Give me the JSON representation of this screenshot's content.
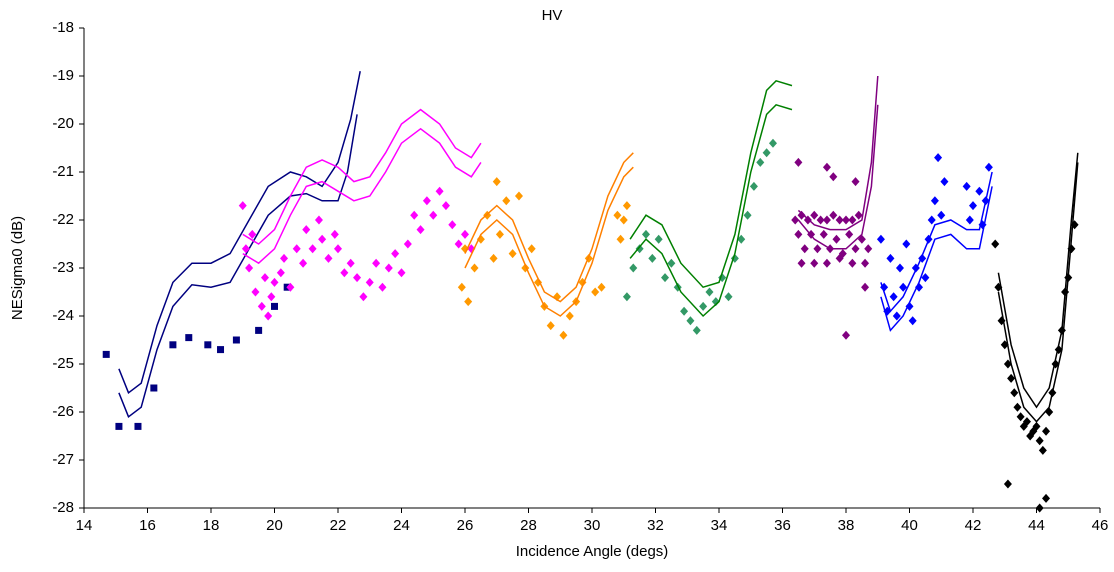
{
  "chart_data": {
    "type": "scatter",
    "title": "HV",
    "x_label": "Incidence Angle (degs)",
    "y_label": "NESigma0 (dB)",
    "xlim": [
      14,
      46
    ],
    "xticks": [
      14,
      16,
      18,
      20,
      22,
      24,
      26,
      28,
      30,
      32,
      34,
      36,
      38,
      40,
      42,
      44,
      46
    ],
    "ylim": [
      -28,
      -18
    ],
    "yticks": [
      -18,
      -19,
      -20,
      -21,
      -22,
      -23,
      -24,
      -25,
      -26,
      -27,
      -28
    ],
    "grid": false,
    "series": [
      {
        "style": "square",
        "color": "#000080",
        "x": [
          14.7,
          15.1,
          15.7,
          16.2,
          16.8,
          17.3,
          17.9,
          18.3,
          18.8,
          19.5,
          20.0,
          20.4
        ],
        "values": [
          -24.8,
          -26.3,
          -26.3,
          -25.5,
          -24.6,
          -24.45,
          -24.6,
          -24.7,
          -24.5,
          -24.3,
          -23.8,
          -23.4
        ]
      },
      {
        "style": "line",
        "color": "#000080",
        "x": [
          15.1,
          15.4,
          15.8,
          16.3,
          16.8,
          17.4,
          18.0,
          18.6,
          19.2,
          19.8,
          20.5,
          21.0,
          21.5,
          22.0,
          22.4,
          22.7
        ],
        "values": [
          -25.1,
          -25.6,
          -25.4,
          -24.2,
          -23.3,
          -22.9,
          -22.9,
          -22.7,
          -22.0,
          -21.3,
          -21.0,
          -21.1,
          -21.3,
          -20.8,
          -19.9,
          -18.9
        ]
      },
      {
        "style": "line",
        "color": "#000080",
        "x": [
          15.1,
          15.4,
          15.8,
          16.3,
          16.8,
          17.4,
          18.0,
          18.6,
          19.2,
          19.8,
          20.5,
          21.0,
          21.5,
          22.0,
          22.3,
          22.6
        ],
        "values": [
          -25.6,
          -26.1,
          -25.9,
          -24.7,
          -23.8,
          -23.35,
          -23.4,
          -23.3,
          -22.6,
          -21.9,
          -21.5,
          -21.45,
          -21.6,
          -21.6,
          -21.0,
          -19.8
        ]
      },
      {
        "style": "diamond",
        "color": "#ff00ff",
        "x": [
          19.0,
          19.1,
          19.2,
          19.3,
          19.4,
          19.6,
          19.7,
          19.8,
          19.9,
          20.0,
          20.2,
          20.3,
          20.5,
          20.7,
          20.9,
          21.0,
          21.2,
          21.4,
          21.5,
          21.7,
          21.9,
          22.0,
          22.2,
          22.4,
          22.6,
          22.8,
          23.0,
          23.2,
          23.4,
          23.6,
          23.8,
          24.0,
          24.2,
          24.4,
          24.6,
          24.8,
          25.0,
          25.2,
          25.4,
          25.6,
          25.8,
          26.0,
          26.2
        ],
        "values": [
          -21.7,
          -22.6,
          -23.0,
          -22.3,
          -23.5,
          -23.8,
          -23.2,
          -24.0,
          -23.6,
          -23.3,
          -23.1,
          -22.8,
          -23.4,
          -22.6,
          -22.9,
          -22.2,
          -22.6,
          -22.0,
          -22.4,
          -22.8,
          -22.3,
          -22.6,
          -23.1,
          -22.9,
          -23.2,
          -23.6,
          -23.3,
          -22.9,
          -23.4,
          -23.0,
          -22.7,
          -23.1,
          -22.5,
          -21.9,
          -22.2,
          -21.6,
          -21.9,
          -21.4,
          -21.7,
          -22.1,
          -22.5,
          -22.3,
          -22.6
        ]
      },
      {
        "style": "line",
        "color": "#ff00ff",
        "x": [
          19,
          19.5,
          20,
          20.5,
          21,
          21.5,
          22,
          22.5,
          23,
          23.5,
          24,
          24.6,
          25.2,
          25.7,
          26.2,
          26.5
        ],
        "values": [
          -22.3,
          -22.5,
          -22.2,
          -21.5,
          -20.9,
          -20.75,
          -20.9,
          -21.2,
          -21.1,
          -20.6,
          -20.0,
          -19.7,
          -20.0,
          -20.5,
          -20.7,
          -20.4
        ]
      },
      {
        "style": "line",
        "color": "#ff00ff",
        "x": [
          19,
          19.5,
          20,
          20.5,
          21,
          21.5,
          22,
          22.5,
          23,
          23.5,
          24,
          24.6,
          25.2,
          25.7,
          26.2,
          26.5
        ],
        "values": [
          -22.7,
          -22.9,
          -22.6,
          -21.9,
          -21.3,
          -21.2,
          -21.4,
          -21.6,
          -21.5,
          -21.0,
          -20.4,
          -20.1,
          -20.4,
          -20.9,
          -21.1,
          -20.8
        ]
      },
      {
        "style": "diamond",
        "color": "#ff9900",
        "x": [
          25.9,
          26.0,
          26.1,
          26.3,
          26.5,
          26.7,
          26.9,
          27.0,
          27.1,
          27.3,
          27.5,
          27.7,
          27.9,
          28.1,
          28.3,
          28.5,
          28.7,
          28.9,
          29.1,
          29.3,
          29.5,
          29.7,
          29.9,
          30.1,
          30.3,
          30.8,
          30.9,
          31.0,
          31.1
        ],
        "values": [
          -23.4,
          -22.6,
          -23.7,
          -23.0,
          -22.4,
          -21.9,
          -22.8,
          -21.2,
          -22.3,
          -21.6,
          -22.7,
          -21.5,
          -23.0,
          -22.6,
          -23.3,
          -23.8,
          -24.2,
          -23.6,
          -24.4,
          -24.0,
          -23.7,
          -23.3,
          -22.8,
          -23.5,
          -23.4,
          -21.9,
          -22.4,
          -22.0,
          -21.7
        ]
      },
      {
        "style": "line",
        "color": "#ff8000",
        "x": [
          26,
          26.5,
          27,
          27.5,
          28,
          28.5,
          29,
          29.5,
          30,
          30.5,
          31,
          31.3
        ],
        "values": [
          -22.7,
          -22.0,
          -21.7,
          -22.0,
          -22.8,
          -23.5,
          -23.7,
          -23.4,
          -22.6,
          -21.5,
          -20.8,
          -20.6
        ]
      },
      {
        "style": "line",
        "color": "#ff8000",
        "x": [
          26,
          26.5,
          27,
          27.5,
          28,
          28.5,
          29,
          29.5,
          30,
          30.5,
          31,
          31.3
        ],
        "values": [
          -23.0,
          -22.3,
          -22.0,
          -22.3,
          -23.1,
          -23.8,
          -24.0,
          -23.7,
          -22.9,
          -21.8,
          -21.1,
          -20.9
        ]
      },
      {
        "style": "diamond",
        "color": "#339966",
        "x": [
          31.1,
          31.3,
          31.5,
          31.7,
          31.9,
          32.1,
          32.3,
          32.5,
          32.7,
          32.9,
          33.1,
          33.3,
          33.5,
          33.7,
          33.9,
          34.1,
          34.3,
          34.5,
          34.7,
          34.9,
          35.1,
          35.3,
          35.5,
          35.7
        ],
        "values": [
          -23.6,
          -23.0,
          -22.6,
          -22.3,
          -22.8,
          -22.4,
          -23.2,
          -22.9,
          -23.4,
          -23.9,
          -24.1,
          -24.3,
          -23.8,
          -23.5,
          -23.7,
          -23.2,
          -23.6,
          -22.8,
          -22.4,
          -21.9,
          -21.3,
          -20.8,
          -20.6,
          -20.4
        ]
      },
      {
        "style": "line",
        "color": "#008000",
        "x": [
          31.2,
          31.7,
          32.2,
          32.8,
          33.5,
          34,
          34.5,
          35,
          35.5,
          35.8,
          36.3
        ],
        "values": [
          -22.4,
          -21.9,
          -22.1,
          -22.9,
          -23.4,
          -23.3,
          -22.3,
          -20.6,
          -19.3,
          -19.1,
          -19.2
        ]
      },
      {
        "style": "line",
        "color": "#008000",
        "x": [
          31.2,
          31.7,
          32.2,
          32.8,
          33.5,
          34,
          34.5,
          35,
          35.5,
          35.8,
          36.3
        ],
        "values": [
          -22.8,
          -22.4,
          -22.7,
          -23.5,
          -24.0,
          -23.7,
          -22.7,
          -21.0,
          -19.8,
          -19.6,
          -19.7
        ]
      },
      {
        "style": "diamond",
        "color": "#800080",
        "x": [
          36.4,
          36.6,
          36.8,
          37.0,
          37.2,
          37.4,
          37.6,
          37.8,
          38.0,
          38.2,
          38.4,
          36.5,
          36.9,
          37.3,
          37.7,
          38.1,
          38.5,
          36.7,
          37.1,
          37.5,
          37.9,
          38.3,
          36.6,
          37.0,
          37.4,
          37.8,
          38.2,
          38.6,
          36.5,
          37.6,
          38.3,
          38.0,
          37.4,
          38.6,
          38.7
        ],
        "values": [
          -22.0,
          -21.9,
          -22.0,
          -21.9,
          -22.0,
          -22.0,
          -21.9,
          -22.0,
          -22.0,
          -22.0,
          -21.9,
          -22.3,
          -22.3,
          -22.3,
          -22.4,
          -22.3,
          -22.4,
          -22.6,
          -22.6,
          -22.6,
          -22.7,
          -22.6,
          -22.9,
          -22.9,
          -22.9,
          -22.8,
          -22.9,
          -22.9,
          -20.8,
          -21.1,
          -21.2,
          -24.4,
          -20.9,
          -23.4,
          -22.6
        ]
      },
      {
        "style": "line",
        "color": "#800080",
        "x": [
          36.5,
          37,
          37.5,
          38,
          38.5,
          38.8,
          39
        ],
        "values": [
          -21.8,
          -22.1,
          -22.2,
          -22.2,
          -22.0,
          -20.8,
          -19.0
        ]
      },
      {
        "style": "line",
        "color": "#800080",
        "x": [
          36.5,
          37,
          37.5,
          38,
          38.5,
          38.8,
          39
        ],
        "values": [
          -22.0,
          -22.4,
          -22.6,
          -22.6,
          -22.3,
          -21.3,
          -19.6
        ]
      },
      {
        "style": "diamond",
        "color": "#0000ff",
        "x": [
          39.1,
          39.2,
          39.3,
          39.4,
          39.5,
          39.6,
          39.7,
          39.8,
          39.9,
          40.0,
          40.1,
          40.2,
          40.3,
          40.4,
          40.5,
          40.6,
          40.7,
          40.8,
          40.9,
          41.0,
          41.1,
          41.8,
          41.9,
          42.0,
          42.2,
          42.3,
          42.4,
          42.5
        ],
        "values": [
          -22.4,
          -23.4,
          -23.9,
          -22.8,
          -23.6,
          -24.0,
          -23.0,
          -23.4,
          -22.5,
          -23.8,
          -24.1,
          -23.0,
          -23.4,
          -22.8,
          -23.2,
          -22.4,
          -22.0,
          -21.6,
          -20.7,
          -21.9,
          -21.2,
          -21.3,
          -22.0,
          -21.7,
          -21.4,
          -22.1,
          -21.6,
          -20.9
        ]
      },
      {
        "style": "line",
        "color": "#0000ff",
        "x": [
          39.1,
          39.4,
          39.8,
          40.3,
          40.8,
          41.3,
          41.8,
          42.2,
          42.6
        ],
        "values": [
          -23.3,
          -23.9,
          -23.6,
          -22.9,
          -22.1,
          -22.0,
          -22.2,
          -22.2,
          -21.0
        ]
      },
      {
        "style": "line",
        "color": "#0000ff",
        "x": [
          39.1,
          39.4,
          39.8,
          40.3,
          40.8,
          41.3,
          41.8,
          42.2,
          42.6
        ],
        "values": [
          -23.6,
          -24.3,
          -24.0,
          -23.3,
          -22.4,
          -22.3,
          -22.6,
          -22.6,
          -21.3
        ]
      },
      {
        "style": "diamond",
        "color": "#000000",
        "x": [
          42.7,
          42.8,
          42.9,
          43.0,
          43.1,
          43.2,
          43.3,
          43.4,
          43.5,
          43.6,
          43.7,
          43.8,
          43.9,
          44.0,
          44.1,
          44.2,
          44.3,
          44.4,
          44.5,
          44.6,
          44.7,
          44.8,
          44.9,
          45.0,
          45.1,
          45.2,
          43.1,
          44.1,
          44.3
        ],
        "values": [
          -22.5,
          -23.4,
          -24.1,
          -24.6,
          -25.0,
          -25.3,
          -25.6,
          -25.9,
          -26.1,
          -26.3,
          -26.2,
          -26.5,
          -26.4,
          -26.3,
          -26.6,
          -26.8,
          -26.4,
          -26.0,
          -25.6,
          -25.0,
          -24.7,
          -24.3,
          -23.5,
          -23.2,
          -22.6,
          -22.1,
          -27.5,
          -28.0,
          -27.8
        ]
      },
      {
        "style": "line",
        "color": "#000000",
        "x": [
          42.8,
          43.2,
          43.6,
          44,
          44.4,
          44.8,
          45.1,
          45.3
        ],
        "values": [
          -23.1,
          -24.6,
          -25.5,
          -25.9,
          -25.5,
          -24.3,
          -22.0,
          -20.6
        ]
      },
      {
        "style": "line",
        "color": "#000000",
        "x": [
          42.8,
          43.2,
          43.6,
          44,
          44.4,
          44.8,
          45.1,
          45.3
        ],
        "values": [
          -23.5,
          -25.0,
          -25.9,
          -26.2,
          -25.9,
          -24.7,
          -22.4,
          -20.8
        ]
      }
    ]
  }
}
